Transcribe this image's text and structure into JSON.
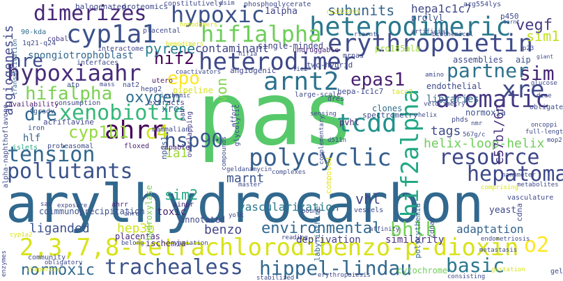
{
  "words": [
    {
      "text": "pas",
      "color": "#57c96b"
    },
    {
      "text": "arylhydrocarbon",
      "color": "#31688e"
    },
    {
      "text": "2,3,7,8-tetrachlorodibenzo-p-dioxin",
      "color": "#d8e219"
    },
    {
      "text": "heterodimeric",
      "color": "#2a788e"
    },
    {
      "text": "erythropoietin",
      "color": "#3e4a89"
    },
    {
      "text": "hypoxic",
      "color": "#3b528b"
    },
    {
      "text": "dimerizes",
      "color": "#482878"
    },
    {
      "text": "cyp1a1",
      "color": "#3b528b"
    },
    {
      "text": "hif1alpha",
      "color": "#6ece58"
    },
    {
      "text": "hypoxiaahr",
      "color": "#472c7a"
    },
    {
      "text": "heterodimer",
      "color": "#3e4989"
    },
    {
      "text": "arnt2",
      "color": "#2c728e"
    },
    {
      "text": "xenobiotic",
      "color": "#35b779"
    },
    {
      "text": "hif2alpha",
      "color": "#22a884"
    },
    {
      "text": "aromatic",
      "color": "#443983"
    },
    {
      "text": "tcdd",
      "color": "#20928c"
    },
    {
      "text": "tension",
      "color": "#31688e"
    },
    {
      "text": "ahrr",
      "color": "#440154"
    },
    {
      "text": "polycyclic",
      "color": "#355f8d"
    },
    {
      "text": "pollutants",
      "color": "#3b528b"
    },
    {
      "text": "hsp90",
      "color": "#39558c"
    },
    {
      "text": "resource",
      "color": "#3f4788"
    },
    {
      "text": "hepatoma",
      "color": "#3e4989"
    },
    {
      "text": "trachealess",
      "color": "#3b528b"
    },
    {
      "text": "hippel-lindau",
      "color": "#31688e"
    },
    {
      "text": "basic",
      "color": "#2a788e"
    },
    {
      "text": "o2",
      "color": "#fde725"
    },
    {
      "text": "normoxic",
      "color": "#31688e"
    },
    {
      "text": "bhlh",
      "color": "#73d056"
    },
    {
      "text": "environmental",
      "color": "#31688e"
    },
    {
      "text": "xre",
      "color": "#3e4a89"
    },
    {
      "text": "sim",
      "color": "#482576"
    },
    {
      "text": "partner",
      "color": "#2d708e"
    },
    {
      "text": "epas1",
      "color": "#481f70"
    },
    {
      "text": "epo",
      "color": "#fde725"
    },
    {
      "text": "hifalpha",
      "color": "#7ad151"
    },
    {
      "text": "dre",
      "color": "#31688e"
    },
    {
      "text": "cyp1b1",
      "color": "#95d840"
    },
    {
      "text": "c4",
      "color": "#d2e21b"
    },
    {
      "text": "hif2",
      "color": "#440154"
    },
    {
      "text": "hre",
      "color": "#3e4a89"
    },
    {
      "text": "angiogenesis",
      "color": "#3f4889"
    },
    {
      "text": "subunits",
      "color": "#33638d"
    },
    {
      "text": "hepa1c1c7",
      "color": "#3f4889"
    },
    {
      "text": "vegf",
      "color": "#443b84"
    },
    {
      "text": "sim1",
      "color": "#c2df23"
    },
    {
      "text": "contaminant",
      "color": "#404688"
    },
    {
      "text": "pyrene",
      "color": "#277f8e"
    },
    {
      "text": "oxygen",
      "color": "#2d708e"
    },
    {
      "text": "von",
      "color": "#7fd34e"
    },
    {
      "text": "sim2",
      "color": "#22a884"
    },
    {
      "text": "marnt",
      "color": "#3a548c"
    },
    {
      "text": "vhl",
      "color": "#404588"
    },
    {
      "text": "vascularization",
      "color": "#2a788e"
    },
    {
      "text": "liganded",
      "color": "#3b528b"
    },
    {
      "text": "hep3b",
      "color": "#d2e21b"
    },
    {
      "text": "benzo",
      "color": "#414287"
    },
    {
      "text": "adaptation",
      "color": "#32648e"
    },
    {
      "text": "c57bl/6n",
      "color": "#472d7b"
    },
    {
      "text": "helix-loop-helix",
      "color": "#6ece58"
    },
    {
      "text": "tags",
      "color": "#3e4a89"
    },
    {
      "text": "1a1",
      "color": "#9fda3a"
    },
    {
      "text": "libraries",
      "color": "#31688e"
    },
    {
      "text": "normoxia",
      "color": "#3b528b"
    },
    {
      "text": "hlf",
      "color": "#35608d"
    },
    {
      "text": "xres",
      "color": "#2e6f8e"
    },
    {
      "text": "similarity",
      "color": "#472d7b"
    },
    {
      "text": "deprivation",
      "color": "#433e85"
    },
    {
      "text": "cytochrome",
      "color": "#6ece58"
    },
    {
      "text": "ischemia",
      "color": "#472c7a"
    },
    {
      "text": "placentas",
      "color": "#482878"
    },
    {
      "text": "toxic",
      "color": "#482071"
    },
    {
      "text": "annotated",
      "color": "#3f4788"
    },
    {
      "text": "coimmunoprecipitation",
      "color": "#3b528b"
    },
    {
      "text": "hydroxylase",
      "color": "#7ad151"
    },
    {
      "text": "pvhl",
      "color": "#482475"
    },
    {
      "text": "composed",
      "color": "#e5e419"
    },
    {
      "text": "clones",
      "color": "#2e6e8e"
    },
    {
      "text": "endothelial",
      "color": "#3e4a89"
    },
    {
      "text": "spectrometry",
      "color": "#3e4989"
    },
    {
      "text": "polycythemia",
      "color": "#31688e"
    },
    {
      "text": "labyrinthine",
      "color": "#31688e"
    },
    {
      "text": "acriflavine",
      "color": "#414487"
    },
    {
      "text": "consumption",
      "color": "#3e4a89"
    },
    {
      "text": "availability",
      "color": "#481a6c"
    },
    {
      "text": "fgradv",
      "color": "#39568c"
    },
    {
      "text": "iron",
      "color": "#3e4a89"
    },
    {
      "text": "islets",
      "color": "#22a884"
    },
    {
      "text": "proteasomal",
      "color": "#3f4889"
    },
    {
      "text": "alpha-naphthoflavone",
      "color": "#3e4a89"
    },
    {
      "text": "mammalian",
      "color": "#3e4a89"
    },
    {
      "text": "capable",
      "color": "#482878"
    },
    {
      "text": "floxed",
      "color": "#482173"
    },
    {
      "text": "npas1",
      "color": "#3b528b"
    },
    {
      "text": "ahrr",
      "color": "#472c7a"
    },
    {
      "text": "ainpr",
      "color": "#482878"
    },
    {
      "text": "interactome",
      "color": "#3f4788"
    },
    {
      "text": "spongiotrophoblast",
      "color": "#31688e"
    },
    {
      "text": "interfaces",
      "color": "#3e4989"
    },
    {
      "text": "atp",
      "color": "#3e4989"
    },
    {
      "text": "nat2",
      "color": "#3e4a89"
    },
    {
      "text": "hepg2",
      "color": "#3e4989"
    },
    {
      "text": "utero",
      "color": "#481668"
    },
    {
      "text": "pipeline",
      "color": "#d8e219"
    },
    {
      "text": "extracts",
      "color": "#3e4989"
    },
    {
      "text": "pah",
      "color": "#3e4989"
    },
    {
      "text": "overlapping",
      "color": "#433e85"
    },
    {
      "text": "constitutively",
      "color": "#3e4a89"
    },
    {
      "text": "phosphoglycerate",
      "color": "#3e4a89"
    },
    {
      "text": "halogenated",
      "color": "#3f4889"
    },
    {
      "text": "proteomics",
      "color": "#3e4989"
    },
    {
      "text": "1alpha",
      "color": "#414487"
    },
    {
      "text": "prolyl",
      "color": "#3b528b"
    },
    {
      "text": "p450",
      "color": "#3e4a89"
    },
    {
      "text": "90-kda",
      "color": "#2f6b8e"
    },
    {
      "text": "cobalt",
      "color": "#443983"
    },
    {
      "text": "placental",
      "color": "#3f4889"
    },
    {
      "text": "1q21-q24",
      "color": "#3e4a89"
    },
    {
      "text": "transactivation",
      "color": "#31688e"
    },
    {
      "text": "single-minded",
      "color": "#414487"
    },
    {
      "text": "undruggable",
      "color": "#482878"
    },
    {
      "text": "pro185ala",
      "color": "#a0da39"
    },
    {
      "text": "biochemical",
      "color": "#3e4989"
    },
    {
      "text": "artificial",
      "color": "#3e4989"
    },
    {
      "text": "rtarnt",
      "color": "#3e4989"
    },
    {
      "text": "mrnas",
      "color": "#3f4788"
    },
    {
      "text": "assemblies",
      "color": "#3e4989"
    },
    {
      "text": "aip",
      "color": "#3b528b"
    },
    {
      "text": "two-hybrid",
      "color": "#3e4989"
    },
    {
      "text": "angiogenic",
      "color": "#3f4889"
    },
    {
      "text": "hepa-1c1c7",
      "color": "#3e4989"
    },
    {
      "text": "large-scale",
      "color": "#3e4a89"
    },
    {
      "text": "dres",
      "color": "#3e4989"
    },
    {
      "text": "tacc3",
      "color": "#d8e219"
    },
    {
      "text": "amino",
      "color": "#3e4989"
    },
    {
      "text": "glucose",
      "color": "#3e4989"
    },
    {
      "text": "deae",
      "color": "#3e4989"
    },
    {
      "text": "obligate",
      "color": "#3e4a89"
    },
    {
      "text": "oncoppi",
      "color": "#3e4989"
    },
    {
      "text": "full-length",
      "color": "#3e4989"
    },
    {
      "text": "mop2",
      "color": "#3e4989"
    },
    {
      "text": "metabolites",
      "color": "#3e4989"
    },
    {
      "text": "vasculature",
      "color": "#3e4989"
    },
    {
      "text": "nanometer",
      "color": "#3e4989"
    },
    {
      "text": "comprising",
      "color": "#d8e219"
    },
    {
      "text": "yeast",
      "color": "#3e4989"
    },
    {
      "text": "cdna",
      "color": "#3e4989"
    },
    {
      "text": "cdnas",
      "color": "#3e4989"
    },
    {
      "text": "endometriosis",
      "color": "#3e4989"
    },
    {
      "text": "metastasis",
      "color": "#3e4989"
    },
    {
      "text": "gestation",
      "color": "#d8e219"
    },
    {
      "text": "consisting",
      "color": "#3e4989"
    },
    {
      "text": "stabilized",
      "color": "#3e4989"
    },
    {
      "text": "erythropoiesis",
      "color": "#3e4989"
    },
    {
      "text": "gel",
      "color": "#3e4989"
    },
    {
      "text": "reading",
      "color": "#3e4989"
    },
    {
      "text": "vessels",
      "color": "#3e4989"
    },
    {
      "text": "bound",
      "color": "#3e4989"
    },
    {
      "text": "affinity",
      "color": "#3e4989"
    },
    {
      "text": "complexes",
      "color": "#3e4989"
    },
    {
      "text": "geldanamycin",
      "color": "#3e4989"
    },
    {
      "text": "master",
      "color": "#3e4989"
    },
    {
      "text": "glycolytic",
      "color": "#3e4989"
    },
    {
      "text": "compounds",
      "color": "#3e4989"
    },
    {
      "text": "complementary",
      "color": "#3e4989"
    },
    {
      "text": "sensing",
      "color": "#3e4989"
    },
    {
      "text": "d511n",
      "color": "#3e4989"
    },
    {
      "text": "nmr",
      "color": "#3e4989"
    },
    {
      "text": "phds",
      "color": "#3e4989"
    },
    {
      "text": "enzymes",
      "color": "#3e4989"
    },
    {
      "text": "community",
      "color": "#3e4989"
    },
    {
      "text": "obligatory",
      "color": "#3e4989"
    },
    {
      "text": "chaperone",
      "color": "#d8e219"
    },
    {
      "text": "cyp1a2",
      "color": "#d8e219"
    },
    {
      "text": "sac",
      "color": "#3e4989"
    },
    {
      "text": "exposure",
      "color": "#3e4989"
    },
    {
      "text": "variation",
      "color": "#3e4989"
    },
    {
      "text": "belong",
      "color": "#3e4989"
    },
    {
      "text": "ahrc",
      "color": "#3e4989"
    },
    {
      "text": "yolk",
      "color": "#3e4989"
    },
    {
      "text": "ischemic",
      "color": "#3e4989"
    },
    {
      "text": "coactivators",
      "color": "#3e4989"
    },
    {
      "text": "effort",
      "color": "#3e4989"
    },
    {
      "text": "tie2",
      "color": "#3e4989"
    },
    {
      "text": "hif1a",
      "color": "#3e4989"
    },
    {
      "text": "arg554lys",
      "color": "#3e4989"
    },
    {
      "text": "tarnt",
      "color": "#3e4989"
    },
    {
      "text": "p23",
      "color": "#3e4989"
    },
    {
      "text": "giant",
      "color": "#3e4989"
    },
    {
      "text": "dsim",
      "color": "#3e4989"
    },
    {
      "text": "rs2228099",
      "color": "#d8e219"
    },
    {
      "text": "mass",
      "color": "#3e4989"
    },
    {
      "text": "velocimetry",
      "color": "#3e4989"
    },
    {
      "text": "567g/c",
      "color": "#3e4989"
    },
    {
      "text": "helix",
      "color": "#3e4989"
    },
    {
      "text": "hemodimers",
      "color": "#d8e219"
    },
    {
      "text": "homodimers",
      "color": "#d8e219"
    }
  ]
}
